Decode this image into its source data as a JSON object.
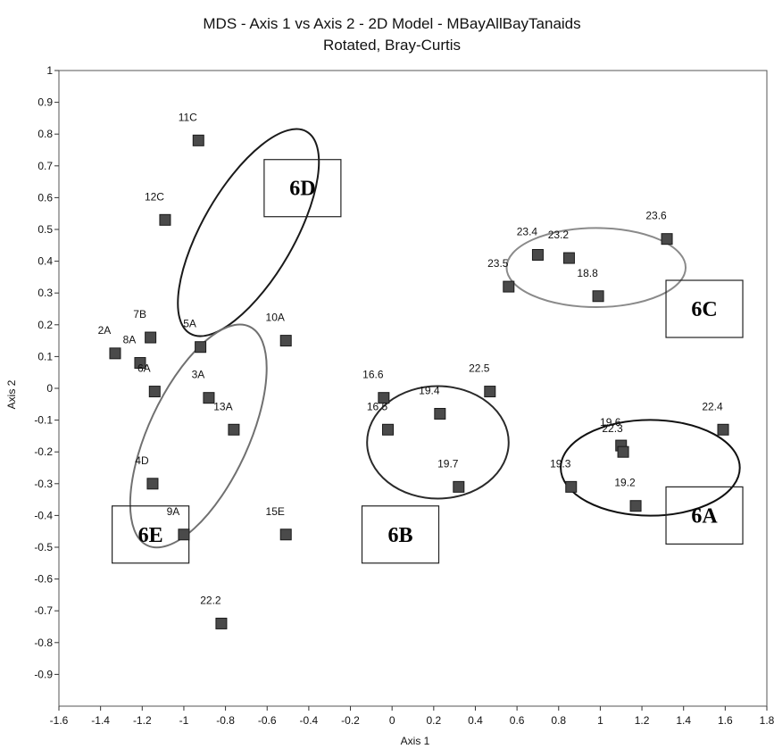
{
  "chart_data": {
    "type": "scatter",
    "title": "MDS - Axis 1 vs Axis 2 - 2D Model - MBayAllBayTanaids",
    "subtitle": "Rotated, Bray-Curtis",
    "xlabel": "Axis 1",
    "ylabel": "Axis 2",
    "xlim": [
      -1.6,
      1.8
    ],
    "ylim": [
      -1.0,
      1.0
    ],
    "xticks": [
      "-1.6",
      "-1.4",
      "-1.2",
      "-1",
      "-0.8",
      "-0.6",
      "-0.4",
      "-0.2",
      "0",
      "0.2",
      "0.4",
      "0.6",
      "0.8",
      "1",
      "1.2",
      "1.4",
      "1.6",
      "1.8"
    ],
    "yticks": [
      "1",
      "0.9",
      "0.8",
      "0.7",
      "0.6",
      "0.5",
      "0.4",
      "0.3",
      "0.2",
      "0.1",
      "0",
      "-0.1",
      "-0.2",
      "-0.3",
      "-0.4",
      "-0.5",
      "-0.6",
      "-0.7",
      "-0.8",
      "-0.9"
    ],
    "grid": false,
    "marker_color": "#4a4a4a",
    "points": [
      {
        "label": "11C",
        "x": -0.93,
        "y": 0.78
      },
      {
        "label": "12C",
        "x": -1.09,
        "y": 0.53
      },
      {
        "label": "10A",
        "x": -0.51,
        "y": 0.15
      },
      {
        "label": "2A",
        "x": -1.33,
        "y": 0.11
      },
      {
        "label": "7B",
        "x": -1.16,
        "y": 0.16
      },
      {
        "label": "8A",
        "x": -1.21,
        "y": 0.08
      },
      {
        "label": "6A",
        "x": -1.14,
        "y": -0.01
      },
      {
        "label": "5A",
        "x": -0.92,
        "y": 0.13
      },
      {
        "label": "3A",
        "x": -0.88,
        "y": -0.03
      },
      {
        "label": "13A",
        "x": -0.76,
        "y": -0.13
      },
      {
        "label": "4D",
        "x": -1.15,
        "y": -0.3
      },
      {
        "label": "9A",
        "x": -1.0,
        "y": -0.46
      },
      {
        "label": "15E",
        "x": -0.51,
        "y": -0.46
      },
      {
        "label": "22.2",
        "x": -0.82,
        "y": -0.74
      },
      {
        "label": "16.6",
        "x": -0.04,
        "y": -0.03
      },
      {
        "label": "16.5",
        "x": -0.02,
        "y": -0.13
      },
      {
        "label": "19.4",
        "x": 0.23,
        "y": -0.08
      },
      {
        "label": "22.5",
        "x": 0.47,
        "y": -0.01
      },
      {
        "label": "19.7",
        "x": 0.32,
        "y": -0.31
      },
      {
        "label": "23.5",
        "x": 0.56,
        "y": 0.32
      },
      {
        "label": "23.4",
        "x": 0.7,
        "y": 0.42
      },
      {
        "label": "23.2",
        "x": 0.85,
        "y": 0.41
      },
      {
        "label": "23.6",
        "x": 1.32,
        "y": 0.47
      },
      {
        "label": "18.8",
        "x": 0.99,
        "y": 0.29
      },
      {
        "label": "19.6",
        "x": 1.1,
        "y": -0.18
      },
      {
        "label": "22.3",
        "x": 1.11,
        "y": -0.2
      },
      {
        "label": "22.4",
        "x": 1.59,
        "y": -0.13
      },
      {
        "label": "19.3",
        "x": 0.86,
        "y": -0.31
      },
      {
        "label": "19.2",
        "x": 1.17,
        "y": -0.37
      }
    ],
    "groups": [
      {
        "label": "6D",
        "stroke": "#1a1a1a",
        "cx": -0.69,
        "cy": 0.49,
        "rx": 0.56,
        "ry": 0.22,
        "angle": -60,
        "box": {
          "x": -0.43,
          "y": 0.63
        }
      },
      {
        "label": "6E",
        "stroke": "#707070",
        "cx": -0.93,
        "cy": -0.15,
        "rx": 0.58,
        "ry": 0.24,
        "angle": -65,
        "box": {
          "x": -1.16,
          "y": -0.46
        }
      },
      {
        "label": "6B",
        "stroke": "#2a2a2a",
        "cx": 0.22,
        "cy": -0.17,
        "rx": 0.34,
        "ry": 0.27,
        "angle": 0,
        "box": {
          "x": 0.04,
          "y": -0.46
        }
      },
      {
        "label": "6C",
        "stroke": "#8a8a8a",
        "cx": 0.98,
        "cy": 0.38,
        "rx": 0.43,
        "ry": 0.19,
        "angle": 0,
        "box": {
          "x": 1.5,
          "y": 0.25
        }
      },
      {
        "label": "6A",
        "stroke": "#111111",
        "cx": 1.24,
        "cy": -0.25,
        "rx": 0.43,
        "ry": 0.23,
        "angle": 0,
        "box": {
          "x": 1.5,
          "y": -0.4
        }
      }
    ]
  }
}
